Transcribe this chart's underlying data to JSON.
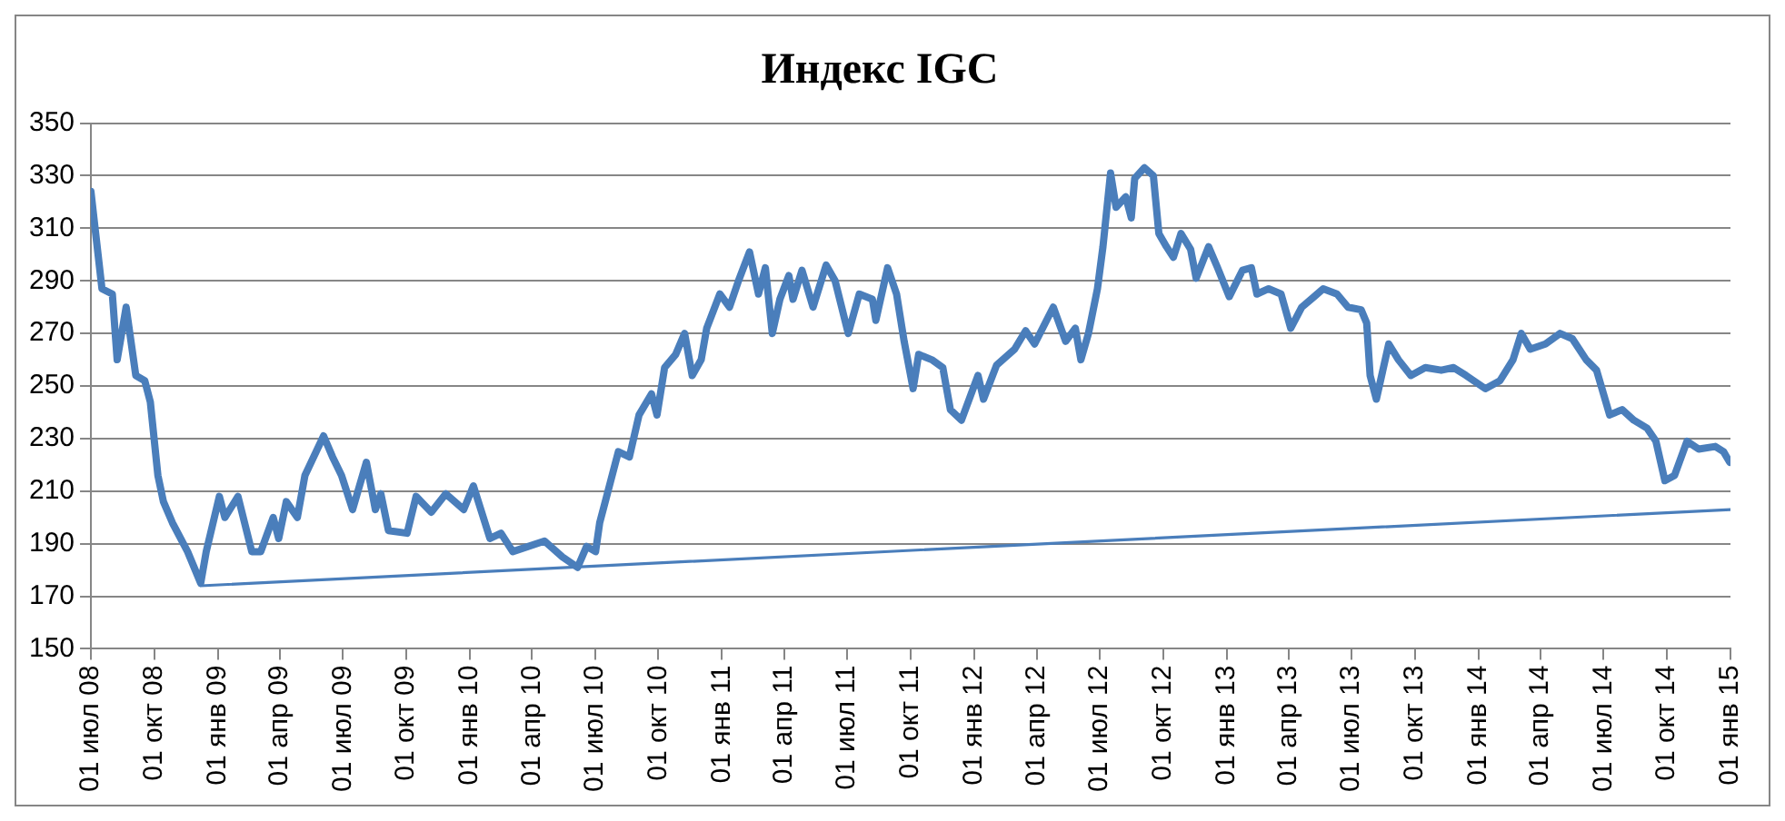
{
  "chart_data": {
    "type": "line",
    "title": "Индекс IGC",
    "x": [
      "2008-07-01",
      "2008-07-07",
      "2008-07-17",
      "2008-08-01",
      "2008-08-08",
      "2008-08-21",
      "2008-09-04",
      "2008-09-17",
      "2008-09-25",
      "2008-10-06",
      "2008-10-14",
      "2008-10-27",
      "2008-11-18",
      "2008-12-07",
      "2008-12-15",
      "2009-01-03",
      "2009-01-11",
      "2009-01-30",
      "2009-02-19",
      "2009-03-04",
      "2009-03-22",
      "2009-03-30",
      "2009-04-10",
      "2009-04-26",
      "2009-05-07",
      "2009-06-03",
      "2009-06-16",
      "2009-06-29",
      "2009-07-15",
      "2009-08-04",
      "2009-08-17",
      "2009-08-25",
      "2009-09-05",
      "2009-10-02",
      "2009-10-15",
      "2009-11-06",
      "2009-11-27",
      "2009-12-23",
      "2010-01-06",
      "2010-01-30",
      "2010-02-15",
      "2010-03-04",
      "2010-04-19",
      "2010-05-15",
      "2010-06-06",
      "2010-06-19",
      "2010-07-02",
      "2010-07-08",
      "2010-07-16",
      "2010-08-04",
      "2010-08-20",
      "2010-09-03",
      "2010-09-21",
      "2010-09-29",
      "2010-10-10",
      "2010-10-26",
      "2010-11-08",
      "2010-11-19",
      "2010-12-02",
      "2010-12-10",
      "2010-12-29",
      "2011-01-12",
      "2011-01-25",
      "2011-02-10",
      "2011-02-23",
      "2011-03-05",
      "2011-03-15",
      "2011-03-26",
      "2011-04-08",
      "2011-04-14",
      "2011-04-27",
      "2011-05-13",
      "2011-06-01",
      "2011-06-14",
      "2011-07-03",
      "2011-07-19",
      "2011-08-07",
      "2011-08-12",
      "2011-08-29",
      "2011-09-11",
      "2011-09-22",
      "2011-10-05",
      "2011-10-13",
      "2011-11-01",
      "2011-11-17",
      "2011-11-28",
      "2011-12-14",
      "2012-01-07",
      "2012-01-15",
      "2012-02-03",
      "2012-02-29",
      "2012-03-16",
      "2012-03-29",
      "2012-04-25",
      "2012-05-13",
      "2012-05-27",
      "2012-06-04",
      "2012-06-15",
      "2012-06-28",
      "2012-07-06",
      "2012-07-17",
      "2012-07-25",
      "2012-08-08",
      "2012-08-16",
      "2012-08-21",
      "2012-09-04",
      "2012-09-17",
      "2012-09-25",
      "2012-10-06",
      "2012-10-16",
      "2012-10-27",
      "2012-11-10",
      "2012-11-18",
      "2012-12-06",
      "2012-12-19",
      "2013-01-05",
      "2013-01-24",
      "2013-02-06",
      "2013-02-14",
      "2013-03-03",
      "2013-03-21",
      "2013-04-04",
      "2013-04-20",
      "2013-05-08",
      "2013-05-21",
      "2013-06-10",
      "2013-06-26",
      "2013-07-15",
      "2013-07-23",
      "2013-07-28",
      "2013-08-06",
      "2013-08-24",
      "2013-09-07",
      "2013-09-25",
      "2013-10-16",
      "2013-11-08",
      "2013-11-26",
      "2013-12-14",
      "2014-01-11",
      "2014-02-01",
      "2014-02-20",
      "2014-03-04",
      "2014-03-17",
      "2014-04-08",
      "2014-04-29",
      "2014-05-17",
      "2014-06-06",
      "2014-06-21",
      "2014-07-10",
      "2014-07-28",
      "2014-08-14",
      "2014-09-02",
      "2014-09-15",
      "2014-09-28",
      "2014-10-12",
      "2014-10-30",
      "2014-11-16",
      "2014-12-10",
      "2014-12-22",
      "2014-12-31"
    ],
    "series": [
      {
        "color": "#4a7ebb",
        "values": [
          324,
          310,
          287,
          285,
          260,
          280,
          254,
          252,
          244,
          216,
          206,
          198,
          187,
          175,
          187,
          208,
          200,
          208,
          187,
          187,
          200,
          192,
          206,
          200,
          216,
          231,
          223,
          216,
          203,
          221,
          203,
          209,
          195,
          194,
          208,
          202,
          209,
          203,
          212,
          192,
          194,
          187,
          191,
          185,
          181,
          189,
          187,
          198,
          206,
          225,
          223,
          239,
          247,
          239,
          257,
          262,
          270,
          254,
          260,
          272,
          285,
          280,
          290,
          301,
          285,
          295,
          270,
          283,
          292,
          283,
          294,
          280,
          296,
          290,
          270,
          285,
          283,
          275,
          295,
          285,
          267,
          249,
          262,
          260,
          257,
          241,
          237,
          254,
          245,
          258,
          264,
          271,
          266,
          280,
          267,
          272,
          260,
          270,
          287,
          303,
          331,
          318,
          322,
          314,
          329,
          333,
          330,
          308,
          303,
          299,
          308,
          302,
          291,
          303,
          295,
          284,
          294,
          295,
          285,
          287,
          285,
          272,
          280,
          284,
          287,
          285,
          280,
          279,
          274,
          254,
          245,
          266,
          260,
          254,
          257,
          256,
          257,
          254,
          249,
          252,
          260,
          270,
          264,
          266,
          270,
          268,
          260,
          256,
          239,
          241,
          237,
          234,
          229,
          214,
          216,
          229,
          226,
          227,
          225,
          221
        ]
      },
      {
        "color": "#4a7ebb",
        "x": [
          "2008-12-07",
          "2015-01-01"
        ],
        "values": [
          174,
          203
        ]
      }
    ],
    "xlim": [
      "2008-07-01",
      "2015-01-01"
    ],
    "xticks": [
      {
        "value": "2008-07-01",
        "label": "01 июл 08"
      },
      {
        "value": "2008-10-01",
        "label": "01 окт 08"
      },
      {
        "value": "2009-01-01",
        "label": "01 янв 09"
      },
      {
        "value": "2009-04-01",
        "label": "01 апр 09"
      },
      {
        "value": "2009-07-01",
        "label": "01 июл 09"
      },
      {
        "value": "2009-10-01",
        "label": "01 окт 09"
      },
      {
        "value": "2010-01-01",
        "label": "01 янв 10"
      },
      {
        "value": "2010-04-01",
        "label": "01 апр 10"
      },
      {
        "value": "2010-07-01",
        "label": "01 июл 10"
      },
      {
        "value": "2010-10-01",
        "label": "01 окт 10"
      },
      {
        "value": "2011-01-01",
        "label": "01 янв 11"
      },
      {
        "value": "2011-04-01",
        "label": "01 апр 11"
      },
      {
        "value": "2011-07-01",
        "label": "01 июл 11"
      },
      {
        "value": "2011-10-01",
        "label": "01 окт 11"
      },
      {
        "value": "2012-01-01",
        "label": "01 янв 12"
      },
      {
        "value": "2012-04-01",
        "label": "01 апр 12"
      },
      {
        "value": "2012-07-01",
        "label": "01 июл 12"
      },
      {
        "value": "2012-10-01",
        "label": "01 окт 12"
      },
      {
        "value": "2013-01-01",
        "label": "01 янв 13"
      },
      {
        "value": "2013-04-01",
        "label": "01 апр 13"
      },
      {
        "value": "2013-07-01",
        "label": "01 июл 13"
      },
      {
        "value": "2013-10-01",
        "label": "01 окт 13"
      },
      {
        "value": "2014-01-01",
        "label": "01 янв 14"
      },
      {
        "value": "2014-04-01",
        "label": "01 апр 14"
      },
      {
        "value": "2014-07-01",
        "label": "01 июл 14"
      },
      {
        "value": "2014-10-01",
        "label": "01 окт 14"
      },
      {
        "value": "2015-01-01",
        "label": "01 янв 15"
      }
    ],
    "ylim": [
      150,
      350
    ],
    "yticks": [
      150,
      170,
      190,
      210,
      230,
      250,
      270,
      290,
      310,
      330,
      350
    ],
    "grid": "y",
    "marker": "none",
    "line_style": "solid"
  }
}
